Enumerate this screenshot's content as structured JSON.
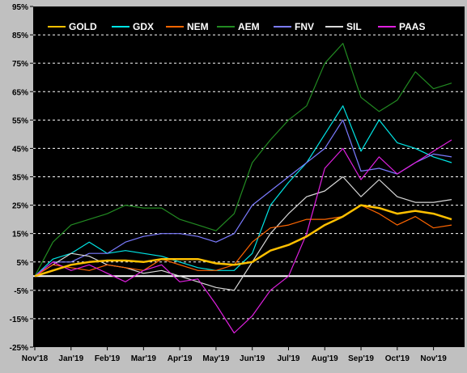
{
  "chart_data": {
    "type": "line",
    "title": "",
    "xlabel": "",
    "ylabel": "",
    "ylim": [
      -25,
      95
    ],
    "yticks": [
      "95%",
      "85%",
      "75%",
      "65%",
      "55%",
      "45%",
      "35%",
      "25%",
      "15%",
      "5%",
      "-5%",
      "-15%",
      "-25%"
    ],
    "ytick_values": [
      95,
      85,
      75,
      65,
      55,
      45,
      35,
      25,
      15,
      5,
      -5,
      -15,
      -25
    ],
    "x_months": [
      "Nov'18",
      "Jan'19",
      "Feb'19",
      "Mar'19",
      "Apr'19",
      "May'19",
      "Jun'19",
      "Jul'19",
      "Aug'19",
      "Sep'19",
      "Oct'19",
      "Nov'19"
    ],
    "x": [
      0,
      0.5,
      1,
      1.5,
      2,
      2.5,
      3,
      3.5,
      4,
      4.5,
      5,
      5.5,
      6,
      6.5,
      7,
      7.5,
      8,
      8.5,
      9,
      9.5,
      10,
      10.5,
      11,
      11.5
    ],
    "grid": true,
    "zero_line": true,
    "legend": "top",
    "background": "#000000",
    "series": [
      {
        "name": "GOLD",
        "color": "#ffc000",
        "values": [
          0,
          2,
          4,
          5,
          5.5,
          5.5,
          5,
          6,
          6,
          6,
          4.5,
          4,
          5,
          9,
          11,
          14,
          18,
          21,
          25,
          24,
          22,
          23,
          22,
          20
        ]
      },
      {
        "name": "GDX",
        "color": "#00e5e5",
        "values": [
          0,
          6,
          8,
          12,
          8,
          9,
          8,
          7,
          5,
          3,
          2,
          2,
          8,
          25,
          33,
          40,
          50,
          60,
          44,
          55,
          47,
          45,
          42,
          40
        ]
      },
      {
        "name": "NEM",
        "color": "#ff6600",
        "values": [
          0,
          4,
          3,
          2,
          4,
          3,
          2,
          6,
          4,
          2,
          2,
          4,
          12,
          17,
          18,
          20,
          20,
          21,
          25,
          22,
          18,
          21,
          17,
          18
        ]
      },
      {
        "name": "AEM",
        "color": "#228b22",
        "values": [
          0,
          12,
          18,
          20,
          22,
          25,
          24,
          24,
          20,
          18,
          16,
          22,
          40,
          48,
          55,
          60,
          75,
          82,
          63,
          58,
          62,
          72,
          66,
          68
        ]
      },
      {
        "name": "FNV",
        "color": "#7b7bff",
        "values": [
          0,
          5,
          5,
          8,
          8,
          12,
          14,
          15,
          15,
          14,
          12,
          15,
          25,
          30,
          35,
          40,
          45,
          55,
          37,
          38,
          36,
          40,
          43,
          42
        ]
      },
      {
        "name": "SIL",
        "color": "#d9d9d9",
        "values": [
          0,
          4,
          8,
          7,
          4,
          3,
          1,
          2,
          0,
          -2,
          -4,
          -5,
          5,
          15,
          22,
          28,
          30,
          35,
          28,
          34,
          28,
          26,
          26,
          27
        ]
      },
      {
        "name": "PAAS",
        "color": "#e020e0",
        "values": [
          0,
          5,
          2,
          4,
          1,
          -2,
          2,
          4,
          -2,
          -1,
          -10,
          -20,
          -14,
          -5,
          0,
          15,
          38,
          45,
          34,
          42,
          36,
          40,
          44,
          48
        ]
      }
    ]
  }
}
